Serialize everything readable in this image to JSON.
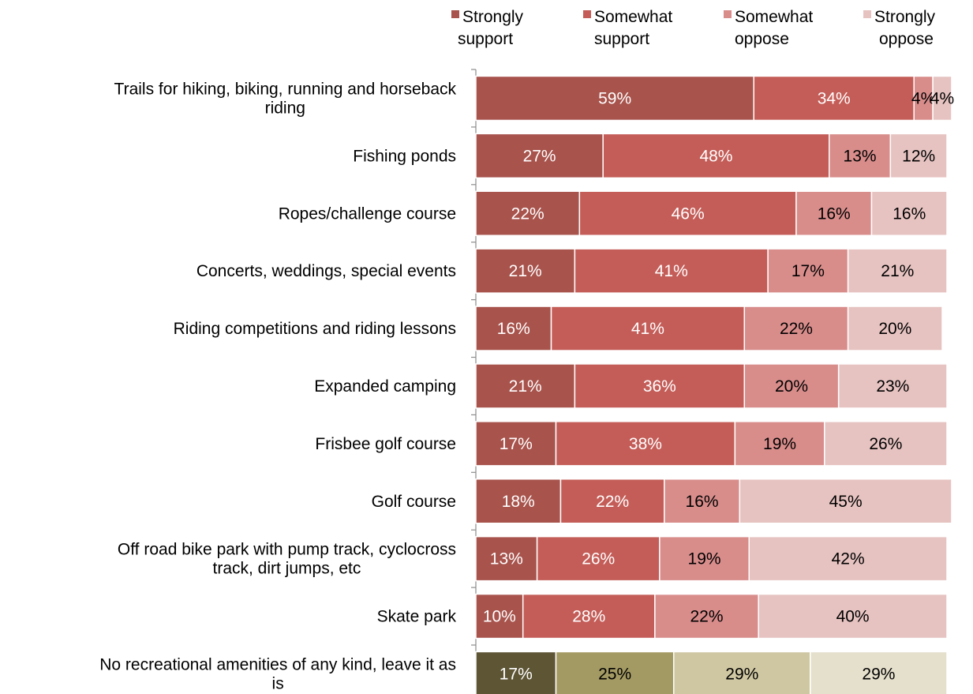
{
  "chart_data": {
    "type": "bar",
    "orientation": "horizontal",
    "stacked": true,
    "xlim": [
      0,
      100
    ],
    "grid": false,
    "legend_position": "top-right",
    "series": [
      {
        "name": "Strongly support",
        "color": "#a8534c"
      },
      {
        "name": "Somewhat support",
        "color": "#c45d58"
      },
      {
        "name": "Somewhat oppose",
        "color": "#d88d8b"
      },
      {
        "name": "Strongly oppose",
        "color": "#e6c3c1"
      }
    ],
    "alt_colors": [
      "#5e5535",
      "#a39a63",
      "#cfc7a2",
      "#e5e0cc"
    ],
    "categories": [
      {
        "label": [
          "Trails for hiking, biking, running and horseback",
          "riding"
        ],
        "values": [
          59,
          34,
          4,
          4
        ],
        "display": [
          "59%",
          "34%",
          "4%",
          "4%"
        ]
      },
      {
        "label": [
          "Fishing ponds"
        ],
        "values": [
          27,
          48,
          13,
          12
        ],
        "display": [
          "27%",
          "48%",
          "13%",
          "12%"
        ]
      },
      {
        "label": [
          "Ropes/challenge course"
        ],
        "values": [
          22,
          46,
          16,
          16
        ],
        "display": [
          "22%",
          "46%",
          "16%",
          "16%"
        ]
      },
      {
        "label": [
          "Concerts, weddings, special events"
        ],
        "values": [
          21,
          41,
          17,
          21
        ],
        "display": [
          "21%",
          "41%",
          "17%",
          "21%"
        ]
      },
      {
        "label": [
          "Riding competitions and riding lessons"
        ],
        "values": [
          16,
          41,
          22,
          20
        ],
        "display": [
          "16%",
          "41%",
          "22%",
          "20%"
        ]
      },
      {
        "label": [
          "Expanded camping"
        ],
        "values": [
          21,
          36,
          20,
          23
        ],
        "display": [
          "21%",
          "36%",
          "20%",
          "23%"
        ]
      },
      {
        "label": [
          "Frisbee golf course"
        ],
        "values": [
          17,
          38,
          19,
          26
        ],
        "display": [
          "17%",
          "38%",
          "19%",
          "26%"
        ]
      },
      {
        "label": [
          "Golf course"
        ],
        "values": [
          18,
          22,
          16,
          45
        ],
        "display": [
          "18%",
          "22%",
          "16%",
          "45%"
        ]
      },
      {
        "label": [
          "Off road bike park with pump track, cyclocross",
          "track, dirt jumps, etc"
        ],
        "values": [
          13,
          26,
          19,
          42
        ],
        "display": [
          "13%",
          "26%",
          "19%",
          "42%"
        ]
      },
      {
        "label": [
          "Skate park"
        ],
        "values": [
          10,
          28,
          22,
          40
        ],
        "display": [
          "10%",
          "28%",
          "22%",
          "40%"
        ]
      },
      {
        "label": [
          "No recreational amenities of any kind, leave it as",
          "is"
        ],
        "values": [
          17,
          25,
          29,
          29
        ],
        "display": [
          "17%",
          "25%",
          "29%",
          "29%"
        ],
        "alt_palette": true
      }
    ]
  }
}
